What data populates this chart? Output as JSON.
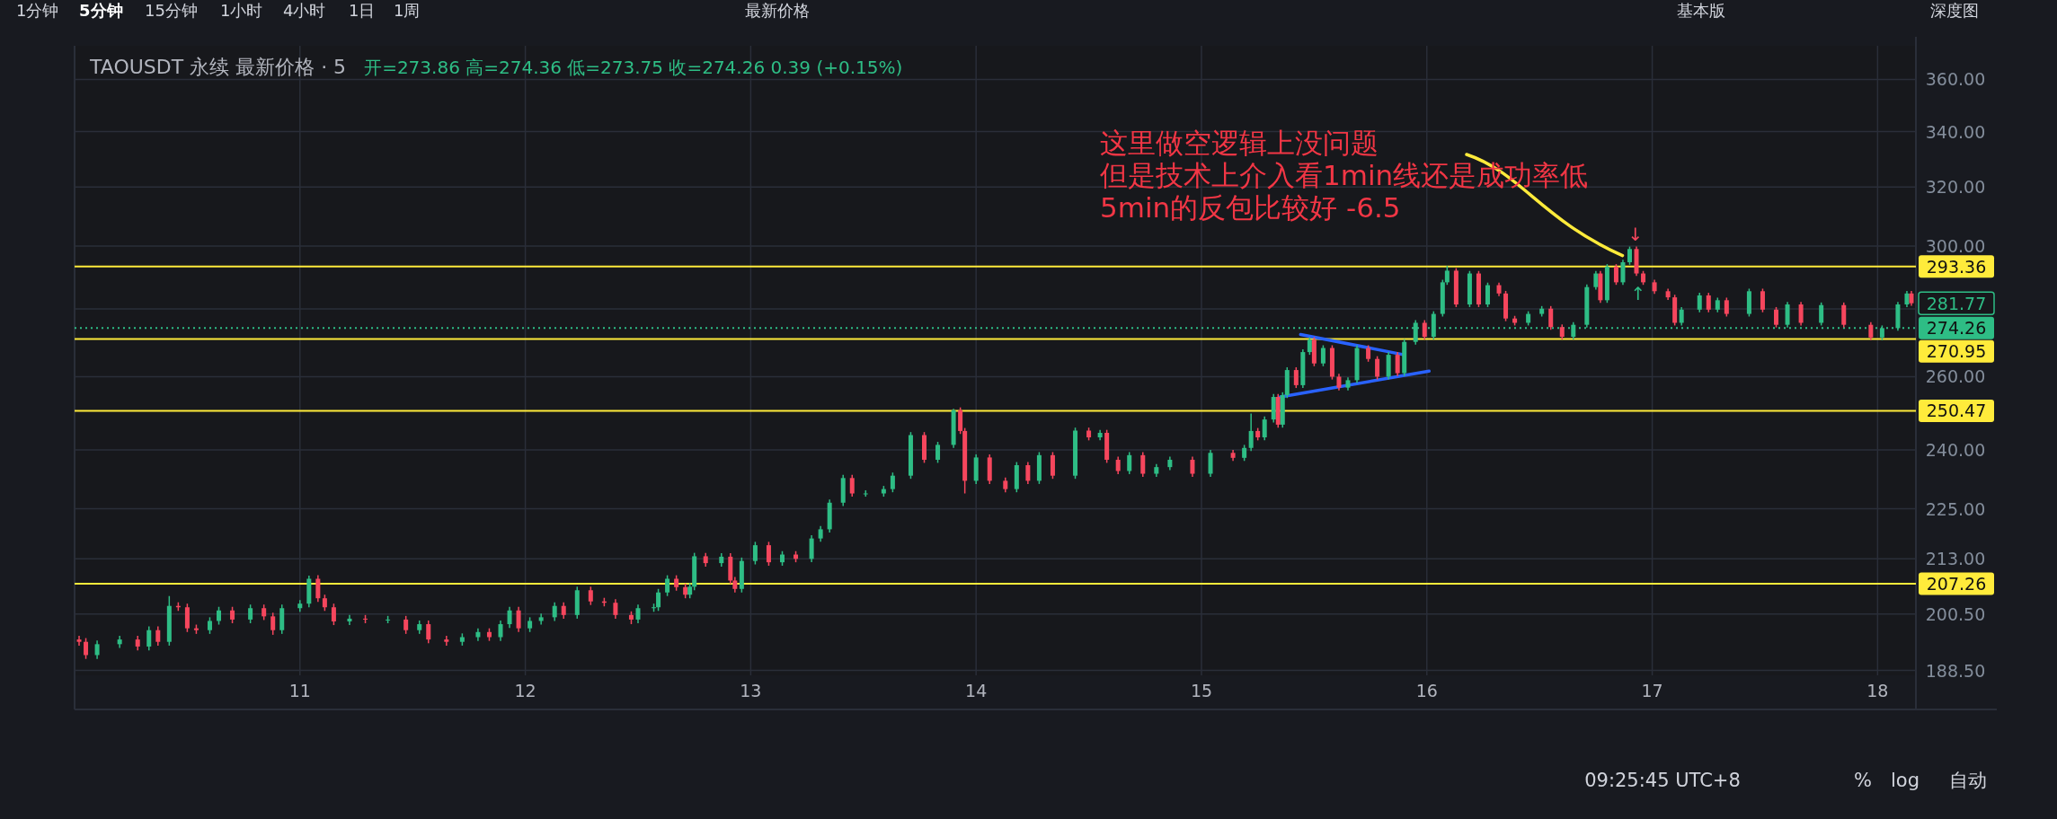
{
  "chart_data": {
    "type": "candlestick",
    "title": "TAOUSDT 永续 最新价格 · 5",
    "subtitle": "开=273.86 高=274.36 低=273.75 收=274.26 0.39 (+0.15%)",
    "annotations": [
      "这里做空逻辑上没问题",
      {
        "text": "但是技术上介入看1min线还是成功率低",
        "x": 16.9,
        "y": 299.8
      },
      "5min的反包比较好 -6.5",
      "1分钟",
      "5分钟",
      "15分钟",
      "1小时",
      "4小时",
      "1日",
      "1周",
      "最新价格",
      "基本版",
      "深度图",
      "09:25:45 UTC+8",
      "%",
      "log",
      "自动",
      "↓",
      "↑",
      {
        "text": "281.77",
        "x": 18.15,
        "y": 281.77
      }
    ],
    "x": [
      10.02,
      10.05,
      10.1,
      10.2,
      10.28,
      10.33,
      10.37,
      10.42,
      10.46,
      10.5,
      10.54,
      10.6,
      10.64,
      10.7,
      10.78,
      10.84,
      10.88,
      10.92,
      11.0,
      11.04,
      11.08,
      11.11,
      11.15,
      11.22,
      11.29,
      11.39,
      11.47,
      11.53,
      11.57,
      11.65,
      11.72,
      11.79,
      11.84,
      11.89,
      11.93,
      11.97,
      12.02,
      12.07,
      12.13,
      12.17,
      12.23,
      12.29,
      12.35,
      12.4,
      12.47,
      12.5,
      12.57,
      12.59,
      12.63,
      12.67,
      12.71,
      12.73,
      12.75,
      12.8,
      12.87,
      12.91,
      12.93,
      12.96,
      13.02,
      13.08,
      13.14,
      13.2,
      13.27,
      13.31,
      13.35,
      13.41,
      13.45,
      13.51,
      13.59,
      13.63,
      13.71,
      13.77,
      13.83,
      13.9,
      13.93,
      13.95,
      14.0,
      14.06,
      14.13,
      14.18,
      14.23,
      14.28,
      14.34,
      14.44,
      14.5,
      14.55,
      14.58,
      14.63,
      14.68,
      14.74,
      14.8,
      14.86,
      14.96,
      15.04,
      15.14,
      15.19,
      15.22,
      15.25,
      15.28,
      15.32,
      15.34,
      15.36,
      15.38,
      15.42,
      15.45,
      15.48,
      15.5,
      15.54,
      15.58,
      15.61,
      15.65,
      15.69,
      15.74,
      15.78,
      15.83,
      15.87,
      15.9,
      15.95,
      15.99,
      16.03,
      16.07,
      16.09,
      16.13,
      16.19,
      16.23,
      16.27,
      16.32,
      16.35,
      16.39,
      16.45,
      16.51,
      16.55,
      16.6,
      16.65,
      16.71,
      16.75,
      16.77,
      16.8,
      16.84,
      16.87,
      16.9,
      16.93,
      16.96,
      17.01,
      17.07,
      17.1,
      17.13,
      17.21,
      17.25,
      17.29,
      17.33,
      17.43,
      17.49,
      17.55,
      17.6,
      17.66,
      17.75,
      17.85,
      17.97,
      18.02,
      18.09,
      18.13,
      18.15
    ],
    "ohlc": [
      [
        195,
        195.8,
        193.7,
        194.5
      ],
      [
        194.5,
        195.3,
        190.9,
        191.7
      ],
      [
        191.7,
        194.8,
        190.9,
        194
      ],
      [
        194,
        195.8,
        193.2,
        195
      ],
      [
        195,
        195.8,
        192.7,
        193.5
      ],
      [
        193.5,
        197.8,
        192.7,
        197
      ],
      [
        197,
        197.8,
        193.7,
        194.5
      ],
      [
        194.5,
        204.5,
        193.7,
        202.3
      ],
      [
        202.3,
        203.1,
        201.2,
        202
      ],
      [
        202,
        202.8,
        196.6,
        197.4
      ],
      [
        197.4,
        198.2,
        196.2,
        197
      ],
      [
        197,
        199.8,
        196.2,
        199
      ],
      [
        199,
        202.1,
        198.2,
        201.3
      ],
      [
        201.3,
        202.1,
        198.5,
        199.3
      ],
      [
        199.3,
        202.6,
        198.5,
        201.8
      ],
      [
        201.8,
        202.6,
        199.2,
        200
      ],
      [
        200,
        200.8,
        196,
        197
      ],
      [
        197,
        202.6,
        196.2,
        201.8
      ],
      [
        201.8,
        203.6,
        201,
        202.8
      ],
      [
        202.8,
        209.1,
        202,
        208.4
      ],
      [
        208.4,
        209.2,
        203.2,
        204
      ],
      [
        204,
        204.8,
        201.2,
        202
      ],
      [
        202,
        202.8,
        198.1,
        198.9
      ],
      [
        198.9,
        200.3,
        198.1,
        199.5
      ],
      [
        199.5,
        200.3,
        198.5,
        199.3
      ],
      [
        199.3,
        200.1,
        198.5,
        199.3
      ],
      [
        199.3,
        200.1,
        196.2,
        197
      ],
      [
        197,
        199.1,
        196.2,
        198.3
      ],
      [
        198.3,
        199.1,
        194.2,
        195
      ],
      [
        195,
        195.8,
        193.7,
        194.5
      ],
      [
        194.5,
        196.3,
        193.7,
        195.5
      ],
      [
        195.5,
        197.4,
        194.7,
        196.6
      ],
      [
        196.6,
        197.4,
        194.7,
        195.5
      ],
      [
        195.5,
        199.1,
        194.7,
        198.3
      ],
      [
        198.3,
        202.1,
        197.5,
        201.3
      ],
      [
        201.3,
        202.1,
        196.6,
        197.4
      ],
      [
        197.4,
        199.8,
        196.6,
        199
      ],
      [
        199,
        200.6,
        198.2,
        199.8
      ],
      [
        199.8,
        203.1,
        199,
        202.3
      ],
      [
        202.3,
        203.1,
        199.5,
        200.3
      ],
      [
        200.3,
        206.6,
        199.5,
        205.8
      ],
      [
        205.8,
        206.6,
        202.5,
        203.3
      ],
      [
        203.3,
        204.1,
        202.2,
        203
      ],
      [
        203,
        203.8,
        199.5,
        200.3
      ],
      [
        200.3,
        201.1,
        198.3,
        199.3
      ],
      [
        199.3,
        202.6,
        198.5,
        201.8
      ],
      [
        201.8,
        202.8,
        201,
        202
      ],
      [
        202,
        206.1,
        201.2,
        205.3
      ],
      [
        205.3,
        209.2,
        204.5,
        208.4
      ],
      [
        208.4,
        209.2,
        205.7,
        206.5
      ],
      [
        206.5,
        207.3,
        204,
        204.8
      ],
      [
        204.8,
        207.4,
        204,
        206.6
      ],
      [
        206.6,
        214.4,
        205.8,
        213.6
      ],
      [
        213.6,
        214.4,
        211.2,
        212
      ],
      [
        212,
        214.3,
        211.2,
        213.5
      ],
      [
        213.5,
        214.3,
        207.2,
        208
      ],
      [
        208,
        208.8,
        205.3,
        206.1
      ],
      [
        206.1,
        213.3,
        205.3,
        212.5
      ],
      [
        212.5,
        217,
        211.7,
        216.2
      ],
      [
        216.2,
        217,
        211.4,
        212.2
      ],
      [
        212.2,
        214.8,
        211.4,
        214
      ],
      [
        214,
        214.8,
        212.2,
        213
      ],
      [
        213,
        218.6,
        212.2,
        217.8
      ],
      [
        217.8,
        220.8,
        217,
        220
      ],
      [
        220,
        227.3,
        219.2,
        226.5
      ],
      [
        226.5,
        233.5,
        225.7,
        232.7
      ],
      [
        232.7,
        233.5,
        228,
        228.8
      ],
      [
        228.8,
        229.6,
        228,
        228.8
      ],
      [
        228.8,
        230.7,
        228,
        229.9
      ],
      [
        229.9,
        234.1,
        229.1,
        233.3
      ],
      [
        233.3,
        244.7,
        232.5,
        243.9
      ],
      [
        243.9,
        244.7,
        236.6,
        237.4
      ],
      [
        237.4,
        242.1,
        236.6,
        241.3
      ],
      [
        241.3,
        251,
        240.5,
        250.6
      ],
      [
        250.6,
        251.4,
        244.2,
        245
      ],
      [
        245,
        245.8,
        228.8,
        232
      ],
      [
        232,
        238.8,
        231.2,
        238
      ],
      [
        238,
        238.8,
        231.2,
        232
      ],
      [
        232,
        232.8,
        229.1,
        229.9
      ],
      [
        229.9,
        236.8,
        229.1,
        236
      ],
      [
        236,
        236.8,
        231.2,
        232
      ],
      [
        232,
        239.4,
        231.2,
        238.6
      ],
      [
        238.6,
        239.4,
        232.5,
        233.3
      ],
      [
        233.3,
        245.9,
        232.5,
        245.1
      ],
      [
        245.1,
        245.9,
        242.5,
        243.3
      ],
      [
        243.3,
        245.3,
        242.5,
        244.5
      ],
      [
        244.5,
        245.3,
        236.6,
        237.4
      ],
      [
        237.4,
        238.2,
        233.7,
        234.5
      ],
      [
        234.5,
        239.4,
        233.7,
        238.6
      ],
      [
        238.6,
        239.4,
        233,
        233.8
      ],
      [
        233.8,
        236.3,
        233,
        235.5
      ],
      [
        235.5,
        238.2,
        234.7,
        237.4
      ],
      [
        237.4,
        238.2,
        233,
        233.8
      ],
      [
        233.8,
        240,
        233,
        239.2
      ],
      [
        239.2,
        240,
        237.1,
        237.9
      ],
      [
        237.9,
        241.3,
        237.1,
        240.5
      ],
      [
        240.5,
        249.7,
        239.7,
        245
      ],
      [
        245,
        245.8,
        242.5,
        243.3
      ],
      [
        243.3,
        248.9,
        242.5,
        248.1
      ],
      [
        248.1,
        255.1,
        247.3,
        254.3
      ],
      [
        254.3,
        255.1,
        245.9,
        246.7
      ],
      [
        246.7,
        255.6,
        245.9,
        254.8
      ],
      [
        254.8,
        262.7,
        254,
        261.9
      ],
      [
        261.9,
        262.7,
        256.8,
        257.6
      ],
      [
        257.6,
        267.9,
        256.8,
        267.1
      ],
      [
        267.1,
        271.5,
        266.3,
        270.7
      ],
      [
        270.7,
        271.5,
        263,
        263.8
      ],
      [
        263.8,
        269.1,
        263,
        268.3
      ],
      [
        268.3,
        269.1,
        259.2,
        260
      ],
      [
        260,
        260.8,
        256.1,
        256.9
      ],
      [
        256.9,
        259.8,
        256.1,
        259
      ],
      [
        259,
        269.1,
        258.2,
        268.3
      ],
      [
        268.3,
        269.1,
        264.3,
        265.1
      ],
      [
        265.1,
        265.9,
        259.2,
        260
      ],
      [
        260,
        267.1,
        259.2,
        266.3
      ],
      [
        266.3,
        267.1,
        260.2,
        261
      ],
      [
        261,
        270.9,
        260.2,
        270.1
      ],
      [
        270.1,
        276.6,
        269.3,
        275.8
      ],
      [
        275.8,
        276.6,
        270.8,
        271.6
      ],
      [
        271.6,
        279.3,
        270.8,
        278.5
      ],
      [
        278.5,
        289.1,
        277.7,
        288.3
      ],
      [
        288.3,
        293.5,
        287.5,
        292
      ],
      [
        292,
        292.8,
        280.6,
        281.4
      ],
      [
        281.4,
        291.9,
        280.6,
        291.1
      ],
      [
        291.1,
        291.9,
        280.6,
        281.4
      ],
      [
        281.4,
        288.2,
        280.6,
        287.4
      ],
      [
        287.4,
        288.2,
        284,
        284.8
      ],
      [
        284.8,
        285.6,
        276.3,
        277.1
      ],
      [
        277.1,
        277.9,
        275,
        275.8
      ],
      [
        275.8,
        279.3,
        275,
        278.5
      ],
      [
        278.5,
        280.9,
        277.7,
        280.1
      ],
      [
        280.1,
        280.9,
        273.7,
        274.5
      ],
      [
        274.5,
        275.3,
        270.8,
        271.6
      ],
      [
        271.6,
        276,
        270.8,
        275.2
      ],
      [
        275.2,
        287.6,
        274.4,
        286.8
      ],
      [
        286.8,
        291.9,
        286,
        291.1
      ],
      [
        291.1,
        291.9,
        281.9,
        282.7
      ],
      [
        282.7,
        294.1,
        281.9,
        293.3
      ],
      [
        293.3,
        294.1,
        287.5,
        288.3
      ],
      [
        288.3,
        295.5,
        287.5,
        294.7
      ],
      [
        294.7,
        299.8,
        293.9,
        299
      ],
      [
        299,
        299.8,
        290.3,
        291.1
      ],
      [
        291.1,
        291.9,
        287.5,
        288.3
      ],
      [
        288.3,
        289.1,
        284.7,
        285.5
      ],
      [
        285.5,
        286.3,
        282.8,
        283.6
      ],
      [
        283.6,
        284.4,
        275,
        275.8
      ],
      [
        275.8,
        280.6,
        275,
        279.8
      ],
      [
        279.8,
        285,
        279,
        284.2
      ],
      [
        284.2,
        285,
        279,
        279.8
      ],
      [
        279.8,
        283.5,
        279,
        282.7
      ],
      [
        282.7,
        283.5,
        277.7,
        278.5
      ],
      [
        278.5,
        286.3,
        277.7,
        285.5
      ],
      [
        285.5,
        286.3,
        279,
        279.8
      ],
      [
        279.8,
        280.6,
        274.4,
        275.2
      ],
      [
        275.2,
        282.2,
        274.4,
        281.4
      ],
      [
        281.4,
        282.2,
        275,
        275.8
      ],
      [
        275.8,
        282,
        275,
        281.2
      ],
      [
        281.2,
        282,
        274.4,
        275.2
      ],
      [
        275.2,
        276,
        270.6,
        271.4
      ],
      [
        271.4,
        275,
        270.6,
        274.2
      ],
      [
        274.2,
        282.2,
        273.4,
        281.4
      ],
      [
        281.4,
        285.6,
        280.6,
        284.8
      ],
      [
        284.8,
        285.6,
        281,
        281.77
      ]
    ],
    "series": [
      {
        "type": "line",
        "color": "#2962ff",
        "x": [
          15.44,
          15.9
        ],
        "values": [
          272.3,
          266.3
        ]
      },
      {
        "type": "line",
        "color": "#2962ff",
        "x": [
          15.35,
          16.01
        ],
        "values": [
          254.3,
          261.6
        ]
      }
    ],
    "ref_lines": [
      {
        "axis": "y",
        "value": 293.36,
        "label": "293.36",
        "color": "#ffeb3b",
        "line_style": "solid"
      },
      {
        "axis": "y",
        "value": 274.26,
        "label": "274.26",
        "color": "#2ebd85",
        "line_style": "dotted"
      },
      {
        "axis": "y",
        "value": 270.95,
        "label": "270.95",
        "color": "#ffeb3b",
        "line_style": "solid"
      },
      {
        "axis": "y",
        "value": 250.47,
        "label": "250.47",
        "color": "#ffeb3b",
        "line_style": "solid"
      },
      {
        "axis": "y",
        "value": 207.26,
        "label": "207.26",
        "color": "#ffeb3b",
        "line_style": "solid"
      }
    ],
    "log": true,
    "grid": true,
    "xlim": [
      10.0,
      18.17
    ],
    "xticks": [
      11,
      12,
      13,
      14,
      15,
      16,
      17,
      18
    ],
    "ylim": [
      187.5,
      373.5
    ],
    "yticks": [
      {
        "value": 188.5,
        "label": "188.50"
      },
      {
        "value": 200.5,
        "label": "200.50"
      },
      {
        "value": 213,
        "label": "213.00"
      },
      {
        "value": 225,
        "label": "225.00"
      },
      {
        "value": 240,
        "label": "240.00"
      },
      {
        "value": 260,
        "label": "260.00"
      },
      {
        "value": 280,
        "label": null
      },
      {
        "value": 300,
        "label": "300.00"
      },
      {
        "value": 320,
        "label": "320.00"
      },
      {
        "value": 340,
        "label": "340.00"
      },
      {
        "value": 360,
        "label": "360.00"
      }
    ]
  }
}
